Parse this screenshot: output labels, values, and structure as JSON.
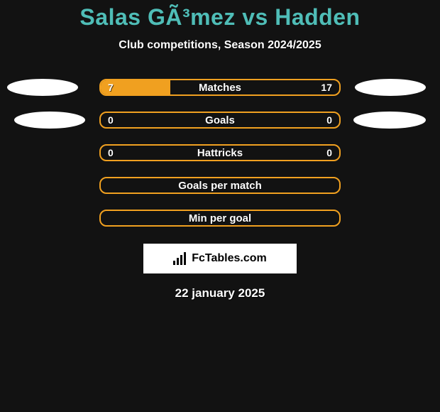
{
  "title": "Salas GÃ³mez vs Hadden",
  "subtitle": "Club competitions, Season 2024/2025",
  "date": "22 january 2025",
  "source": {
    "label": "FcTables.com"
  },
  "colors": {
    "accent": "#4fbdb7",
    "bar_border": "#f0a020",
    "bar_fill": "#f0a020",
    "background": "#121212",
    "text": "#ffffff",
    "badge": "#ffffff"
  },
  "stats": [
    {
      "label": "Matches",
      "left_value": "7",
      "right_value": "17",
      "left_pct": 29.2,
      "show_left_badge": true,
      "show_right_badge": true,
      "badge_shift": false
    },
    {
      "label": "Goals",
      "left_value": "0",
      "right_value": "0",
      "left_pct": 0,
      "show_left_badge": true,
      "show_right_badge": true,
      "badge_shift": true
    },
    {
      "label": "Hattricks",
      "left_value": "0",
      "right_value": "0",
      "left_pct": 0,
      "show_left_badge": false,
      "show_right_badge": false,
      "badge_shift": false
    },
    {
      "label": "Goals per match",
      "left_value": "",
      "right_value": "",
      "left_pct": 0,
      "show_left_badge": false,
      "show_right_badge": false,
      "badge_shift": false
    },
    {
      "label": "Min per goal",
      "left_value": "",
      "right_value": "",
      "left_pct": 0,
      "show_left_badge": false,
      "show_right_badge": false,
      "badge_shift": false
    }
  ]
}
